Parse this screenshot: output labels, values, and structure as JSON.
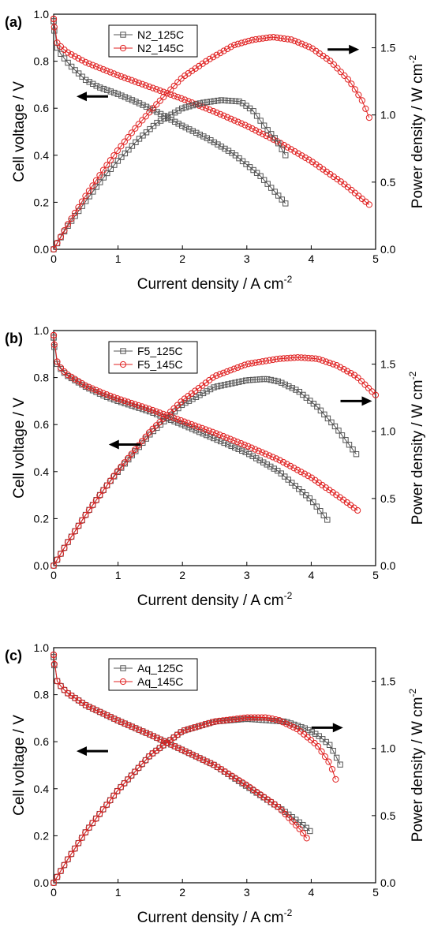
{
  "chart_data": [
    {
      "type": "line",
      "panel_label": "(a)",
      "xlabel": "Current density / A cm",
      "xlabel_sup": "-2",
      "ylabel": "Cell voltage  /  V",
      "y2label": "Power density / W cm",
      "y2label_sup": "-2",
      "xlim": [
        0,
        5
      ],
      "ylim": [
        0,
        1.0
      ],
      "y2lim": [
        0,
        1.75
      ],
      "xticks": [
        "0",
        "1",
        "2",
        "3",
        "4",
        "5"
      ],
      "yticks": [
        "0.0",
        "0.2",
        "0.4",
        "0.6",
        "0.8",
        "1.0"
      ],
      "y2ticks": [
        "0.0",
        "0.5",
        "1.0",
        "1.5"
      ],
      "legend_position": "top-left",
      "arrows": [
        {
          "direction": "left",
          "x": 0.6,
          "y": 0.65
        },
        {
          "direction": "right",
          "x": 4.5,
          "y": 0.85
        }
      ],
      "series": [
        {
          "name": "N2_125C",
          "color": "#555555",
          "marker": "square",
          "axis": "left",
          "x": [
            0,
            0.02,
            0.05,
            0.1,
            0.2,
            0.3,
            0.5,
            0.7,
            1,
            1.3,
            1.6,
            2,
            2.4,
            2.8,
            3.2,
            3.6
          ],
          "y": [
            0.97,
            0.89,
            0.86,
            0.835,
            0.8,
            0.77,
            0.72,
            0.69,
            0.66,
            0.625,
            0.585,
            0.525,
            0.47,
            0.405,
            0.315,
            0.195
          ]
        },
        {
          "name": "N2_145C",
          "color": "#e02020",
          "marker": "circle",
          "axis": "left",
          "x": [
            0,
            0.02,
            0.05,
            0.1,
            0.2,
            0.5,
            1,
            1.5,
            2,
            2.5,
            3,
            3.5,
            4,
            4.5,
            4.9
          ],
          "y": [
            0.98,
            0.91,
            0.88,
            0.865,
            0.84,
            0.795,
            0.74,
            0.69,
            0.64,
            0.585,
            0.525,
            0.455,
            0.375,
            0.28,
            0.19
          ]
        },
        {
          "name": "N2_125C",
          "color": "#555555",
          "marker": "square",
          "axis": "right",
          "x": [
            0,
            0.2,
            0.5,
            0.8,
            1,
            1.3,
            1.6,
            2,
            2.3,
            2.6,
            2.9,
            3.1,
            3.3,
            3.45,
            3.6
          ],
          "y": [
            0,
            0.16,
            0.36,
            0.55,
            0.66,
            0.81,
            0.94,
            1.05,
            1.09,
            1.11,
            1.1,
            1.03,
            0.9,
            0.82,
            0.7
          ]
        },
        {
          "name": "N2_145C",
          "color": "#e02020",
          "marker": "circle",
          "axis": "right",
          "x": [
            0,
            0.2,
            0.5,
            0.8,
            1,
            1.3,
            1.6,
            2,
            2.4,
            2.8,
            3.1,
            3.4,
            3.7,
            4,
            4.3,
            4.6,
            4.8,
            4.9
          ],
          "y": [
            0,
            0.17,
            0.4,
            0.61,
            0.74,
            0.92,
            1.08,
            1.28,
            1.41,
            1.52,
            1.56,
            1.58,
            1.56,
            1.5,
            1.4,
            1.25,
            1.1,
            0.98
          ]
        }
      ]
    },
    {
      "type": "line",
      "panel_label": "(b)",
      "xlabel": "Current density / A cm",
      "xlabel_sup": "-2",
      "ylabel": "Cell voltage  /  V",
      "y2label": "Power density / W cm",
      "y2label_sup": "-2",
      "xlim": [
        0,
        5
      ],
      "ylim": [
        0,
        1.0
      ],
      "y2lim": [
        0,
        1.75
      ],
      "xticks": [
        "0",
        "1",
        "2",
        "3",
        "4",
        "5"
      ],
      "yticks": [
        "0.0",
        "0.2",
        "0.4",
        "0.6",
        "0.8",
        "1.0"
      ],
      "y2ticks": [
        "0.0",
        "0.5",
        "1.0",
        "1.5"
      ],
      "legend_position": "top-left",
      "arrows": [
        {
          "direction": "left",
          "x": 1.1,
          "y": 0.515
        },
        {
          "direction": "right",
          "x": 4.7,
          "y": 0.7
        }
      ],
      "series": [
        {
          "name": "F5_125C",
          "color": "#555555",
          "marker": "square",
          "axis": "left",
          "x": [
            0,
            0.02,
            0.05,
            0.1,
            0.2,
            0.5,
            0.8,
            1,
            1.5,
            2,
            2.5,
            3,
            3.5,
            4,
            4.25
          ],
          "y": [
            0.97,
            0.89,
            0.86,
            0.84,
            0.81,
            0.76,
            0.72,
            0.7,
            0.655,
            0.6,
            0.54,
            0.48,
            0.4,
            0.28,
            0.195
          ]
        },
        {
          "name": "F5_145C",
          "color": "#e02020",
          "marker": "circle",
          "axis": "left",
          "x": [
            0,
            0.02,
            0.05,
            0.1,
            0.2,
            0.5,
            0.8,
            1,
            1.5,
            2,
            2.5,
            3,
            3.5,
            4,
            4.5,
            4.72
          ],
          "y": [
            0.98,
            0.9,
            0.87,
            0.845,
            0.815,
            0.765,
            0.73,
            0.71,
            0.665,
            0.615,
            0.565,
            0.51,
            0.45,
            0.375,
            0.28,
            0.235
          ]
        },
        {
          "name": "F5_125C",
          "color": "#555555",
          "marker": "square",
          "axis": "right",
          "x": [
            0,
            0.2,
            0.5,
            0.8,
            1,
            1.5,
            2,
            2.5,
            3,
            3.3,
            3.5,
            3.8,
            4.1,
            4.4,
            4.7
          ],
          "y": [
            0,
            0.16,
            0.38,
            0.58,
            0.7,
            0.98,
            1.2,
            1.33,
            1.38,
            1.39,
            1.37,
            1.3,
            1.18,
            1.02,
            0.83
          ]
        },
        {
          "name": "F5_145C",
          "color": "#e02020",
          "marker": "circle",
          "axis": "right",
          "x": [
            0,
            0.2,
            0.5,
            0.8,
            1,
            1.5,
            2,
            2.5,
            3,
            3.5,
            3.8,
            4.1,
            4.4,
            4.7,
            5
          ],
          "y": [
            0,
            0.16,
            0.38,
            0.58,
            0.71,
            1.0,
            1.23,
            1.41,
            1.5,
            1.54,
            1.55,
            1.54,
            1.49,
            1.41,
            1.27
          ]
        }
      ]
    },
    {
      "type": "line",
      "panel_label": "(c)",
      "xlabel": "Current density / A cm",
      "xlabel_sup": "-2",
      "ylabel": "Cell voltage  /  V",
      "y2label": "Power density / W cm",
      "y2label_sup": "-2",
      "xlim": [
        0,
        5
      ],
      "ylim": [
        0,
        1.0
      ],
      "y2lim": [
        0,
        1.75
      ],
      "xticks": [
        "0",
        "1",
        "2",
        "3",
        "4",
        "5"
      ],
      "yticks": [
        "0.0",
        "0.2",
        "0.4",
        "0.6",
        "0.8",
        "1.0"
      ],
      "y2ticks": [
        "0.0",
        "0.5",
        "1.0",
        "1.5"
      ],
      "legend_position": "top-left",
      "arrows": [
        {
          "direction": "left",
          "x": 0.6,
          "y": 0.56
        },
        {
          "direction": "right",
          "x": 4.25,
          "y": 0.66
        }
      ],
      "series": [
        {
          "name": "Aq_125C",
          "color": "#555555",
          "marker": "square",
          "axis": "left",
          "x": [
            0,
            0.02,
            0.05,
            0.1,
            0.2,
            0.5,
            1,
            1.5,
            2,
            2.5,
            3,
            3.5,
            3.9,
            3.98
          ],
          "y": [
            0.96,
            0.89,
            0.86,
            0.84,
            0.81,
            0.755,
            0.69,
            0.63,
            0.565,
            0.5,
            0.41,
            0.32,
            0.24,
            0.22
          ]
        },
        {
          "name": "Aq_145C",
          "color": "#e02020",
          "marker": "circle",
          "axis": "left",
          "x": [
            0,
            0.02,
            0.05,
            0.1,
            0.2,
            0.5,
            1,
            1.5,
            2,
            2.5,
            3,
            3.5,
            3.85,
            3.93
          ],
          "y": [
            0.97,
            0.89,
            0.86,
            0.84,
            0.81,
            0.755,
            0.69,
            0.63,
            0.565,
            0.5,
            0.415,
            0.32,
            0.22,
            0.19
          ]
        },
        {
          "name": "Aq_125C",
          "color": "#555555",
          "marker": "square",
          "axis": "right",
          "x": [
            0,
            0.2,
            0.5,
            1,
            1.5,
            2,
            2.5,
            3,
            3.3,
            3.6,
            3.9,
            4.1,
            4.3,
            4.45
          ],
          "y": [
            0,
            0.16,
            0.38,
            0.69,
            0.95,
            1.13,
            1.2,
            1.22,
            1.21,
            1.2,
            1.15,
            1.1,
            1.02,
            0.88
          ]
        },
        {
          "name": "Aq_145C",
          "color": "#e02020",
          "marker": "circle",
          "axis": "right",
          "x": [
            0,
            0.2,
            0.5,
            1,
            1.5,
            2,
            2.5,
            3,
            3.3,
            3.5,
            3.8,
            4.1,
            4.3,
            4.38
          ],
          "y": [
            0,
            0.16,
            0.38,
            0.69,
            0.95,
            1.13,
            1.2,
            1.23,
            1.23,
            1.21,
            1.14,
            1.02,
            0.88,
            0.77
          ]
        }
      ]
    }
  ]
}
